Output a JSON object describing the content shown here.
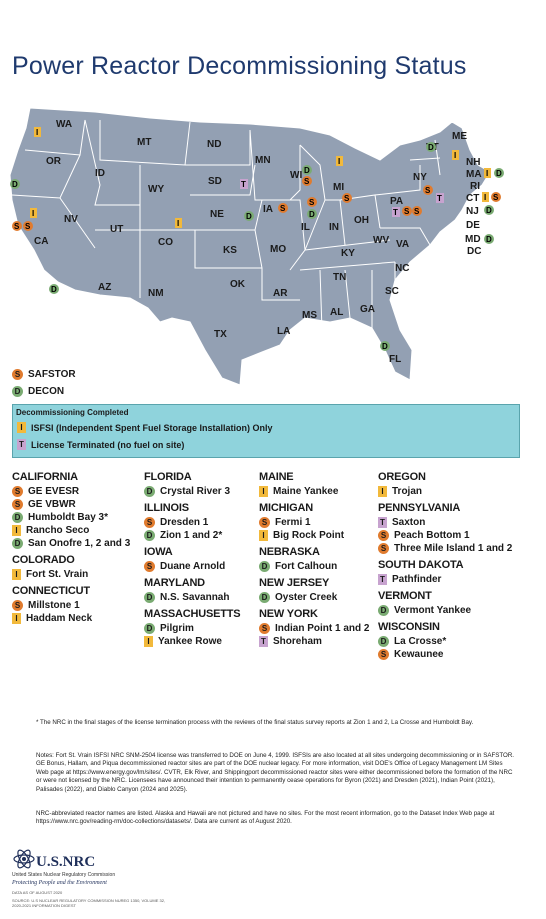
{
  "title": "Power Reactor Decommissioning Status",
  "map": {
    "state_labels": [
      "WA",
      "OR",
      "ID",
      "MT",
      "ND",
      "SD",
      "WY",
      "NE",
      "NV",
      "UT",
      "CO",
      "KS",
      "OK",
      "NM",
      "AZ",
      "CA",
      "TX",
      "MN",
      "IA",
      "WI",
      "MI",
      "IL",
      "IN",
      "OH",
      "MO",
      "AR",
      "LA",
      "MS",
      "AL",
      "TN",
      "KY",
      "WV",
      "VA",
      "NC",
      "SC",
      "GA",
      "FL",
      "PA",
      "NY",
      "VT",
      "ME",
      "NH",
      "MA",
      "RI",
      "CT",
      "NJ",
      "DE",
      "MD",
      "DC"
    ]
  },
  "legend": {
    "safstor": "SAFSTOR",
    "decon": "DECON",
    "completed_header": "Decommissioning Completed",
    "isfsi": "ISFSI (Independent Spent Fuel Storage Installation) Only",
    "terminated": "License Terminated (no fuel on site)",
    "colors": {
      "safstor": "#e07b2e",
      "decon": "#7aab72",
      "isfsi": "#f2b93b",
      "terminated": "#c7a3cf",
      "completed_box": "#8fd3dc"
    }
  },
  "columns": [
    [
      {
        "state": "CALIFORNIA",
        "reactors": [
          {
            "name": "GE EVESR",
            "status": "S"
          },
          {
            "name": "GE VBWR",
            "status": "S"
          },
          {
            "name": "Humboldt Bay 3*",
            "status": "D"
          },
          {
            "name": "Rancho Seco",
            "status": "I"
          },
          {
            "name": "San Onofre 1, 2 and 3",
            "status": "D"
          }
        ]
      },
      {
        "state": "COLORADO",
        "reactors": [
          {
            "name": "Fort St. Vrain",
            "status": "I"
          }
        ]
      },
      {
        "state": "CONNECTICUT",
        "reactors": [
          {
            "name": "Millstone 1",
            "status": "S"
          },
          {
            "name": "Haddam Neck",
            "status": "I"
          }
        ]
      }
    ],
    [
      {
        "state": "FLORIDA",
        "reactors": [
          {
            "name": "Crystal River 3",
            "status": "D"
          }
        ]
      },
      {
        "state": "ILLINOIS",
        "reactors": [
          {
            "name": "Dresden 1",
            "status": "S"
          },
          {
            "name": "Zion 1 and 2*",
            "status": "D"
          }
        ]
      },
      {
        "state": "IOWA",
        "reactors": [
          {
            "name": "Duane Arnold",
            "status": "S"
          }
        ]
      },
      {
        "state": "MARYLAND",
        "reactors": [
          {
            "name": "N.S. Savannah",
            "status": "D"
          }
        ]
      },
      {
        "state": "MASSACHUSETTS",
        "reactors": [
          {
            "name": "Pilgrim",
            "status": "D"
          },
          {
            "name": "Yankee Rowe",
            "status": "I"
          }
        ]
      }
    ],
    [
      {
        "state": "MAINE",
        "reactors": [
          {
            "name": "Maine Yankee",
            "status": "I"
          }
        ]
      },
      {
        "state": "MICHIGAN",
        "reactors": [
          {
            "name": "Fermi 1",
            "status": "S"
          },
          {
            "name": "Big Rock Point",
            "status": "I"
          }
        ]
      },
      {
        "state": "NEBRASKA",
        "reactors": [
          {
            "name": "Fort Calhoun",
            "status": "D"
          }
        ]
      },
      {
        "state": "NEW JERSEY",
        "reactors": [
          {
            "name": "Oyster Creek",
            "status": "D"
          }
        ]
      },
      {
        "state": "NEW YORK",
        "reactors": [
          {
            "name": "Indian Point 1 and 2",
            "status": "S"
          },
          {
            "name": "Shoreham",
            "status": "T"
          }
        ]
      }
    ],
    [
      {
        "state": "OREGON",
        "reactors": [
          {
            "name": "Trojan",
            "status": "I"
          }
        ]
      },
      {
        "state": "PENNSYLVANIA",
        "reactors": [
          {
            "name": "Saxton",
            "status": "T"
          },
          {
            "name": "Peach Bottom 1",
            "status": "S"
          },
          {
            "name": "Three Mile Island 1 and 2",
            "status": "S"
          }
        ]
      },
      {
        "state": "SOUTH DAKOTA",
        "reactors": [
          {
            "name": "Pathfinder",
            "status": "T"
          }
        ]
      },
      {
        "state": "VERMONT",
        "reactors": [
          {
            "name": "Vermont Yankee",
            "status": "D"
          }
        ]
      },
      {
        "state": "WISCONSIN",
        "reactors": [
          {
            "name": "La Crosse*",
            "status": "D"
          },
          {
            "name": "Kewaunee",
            "status": "S"
          }
        ]
      }
    ]
  ],
  "footnote": "* The NRC in the final stages of the license termination process with the reviews of the final status survey reports at Zion 1 and 2, La Crosse and Humboldt Bay.",
  "notes_1": "Notes: Fort St. Vrain ISFSI NRC SNM-2504 license was transferred to DOE on June 4, 1999. ISFSIs are also located at all sites undergoing decommissioning or in SAFSTOR. GE Bonus, Hallam, and Piqua decommissioned reactor sites are part of the DOE nuclear legacy. For more information, visit DOE's Office of Legacy Management LM Sites Web page at https://www.energy.gov/lm/sites/. CVTR, Elk River, and Shippingport decommissioned reactor sites were either decommissioned before the formation of the NRC or were not licensed by the NRC. Licensees have announced their intention to permanently cease operations for Byron (2021) and Dresden (2021), Indian Point (2021), Palisades (2022), and Diablo Canyon (2024 and 2025).",
  "notes_2": "NRC-abbreviated reactor names are listed. Alaska and Hawaii are not pictured and have no sites. For the most recent information, go to the Dataset Index Web page at https://www.nrc.gov/reading-rm/doc-collections/datasets/. Data are current as of August 2020.",
  "logo": {
    "name": "U.S.NRC",
    "sub": "United States Nuclear Regulatory Commission",
    "tag": "Protecting People and the Environment",
    "date": "DATA AS OF AUGUST 2020",
    "source": "SOURCE: U.S NUCLEAR REGULATORY COMMISSION NUREG 1350, VOLUME 32, 2020-2021 INFORMATION DIGEST"
  }
}
